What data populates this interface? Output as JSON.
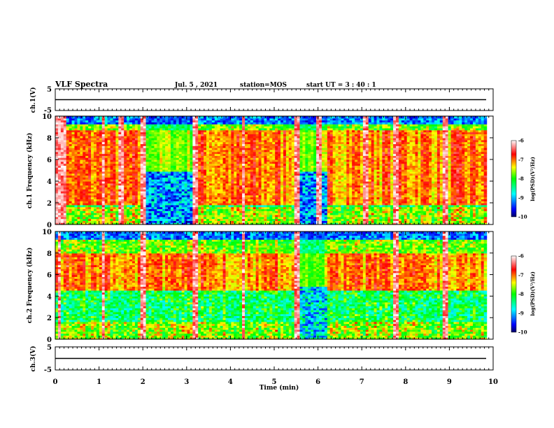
{
  "header": {
    "title": "VLF Spectra",
    "date": "Jul. 5 , 2021",
    "station": "station=MOS",
    "start": "start UT = 3 : 40 : 1"
  },
  "chart_data": [
    {
      "type": "line",
      "panel": "ch1-waveform",
      "ylabel": "ch.1(V)",
      "ylim": [
        -5,
        5
      ],
      "yticks": [
        "5",
        "-5"
      ],
      "series": [
        {
          "x": [
            0,
            9.85
          ],
          "values": [
            0,
            0
          ]
        }
      ]
    },
    {
      "type": "heatmap",
      "panel": "ch1-spectrogram",
      "ylabel": "ch.1 Frequency (kHz)",
      "ylim": [
        0,
        10
      ],
      "yticks": [
        "0",
        "2",
        "4",
        "6",
        "8",
        "10"
      ],
      "xlim": [
        0,
        10
      ],
      "data_end_min": 9.85,
      "colorbar": {
        "label": "log(PSD)(V²/Hz)",
        "range": [
          -10,
          -6
        ],
        "ticks": [
          "-6",
          "-7",
          "-8",
          "-9",
          "-10"
        ]
      },
      "intense_band_khz": [
        1.8,
        8.8
      ],
      "quiet_intervals_min": [
        [
          2.05,
          3.2
        ],
        [
          5.5,
          6.2
        ]
      ],
      "spikes_min": [
        0.07,
        0.2,
        1.1,
        1.5,
        2.0,
        3.2,
        4.3,
        5.5,
        6.0,
        7.1,
        7.8,
        8.9
      ]
    },
    {
      "type": "heatmap",
      "panel": "ch2-spectrogram",
      "ylabel": "ch.2 Frequency (kHz)",
      "ylim": [
        0,
        10
      ],
      "yticks": [
        "0",
        "2",
        "4",
        "6",
        "8",
        "10"
      ],
      "xlim": [
        0,
        10
      ],
      "data_end_min": 9.85,
      "colorbar": {
        "label": "log(PSD)(V²/Hz)",
        "range": [
          -10,
          -6
        ],
        "ticks": [
          "-6",
          "-7",
          "-8",
          "-9",
          "-10"
        ]
      },
      "intense_band_khz": [
        4.5,
        8.0
      ],
      "quiet_intervals_min": [
        [
          5.5,
          6.2
        ]
      ],
      "spikes_min": [
        0.1,
        1.1,
        2.0,
        3.2,
        4.3,
        5.5,
        7.8,
        8.9
      ]
    },
    {
      "type": "line",
      "panel": "ch3-waveform",
      "ylabel": "ch.3(V)",
      "ylim": [
        -5,
        5
      ],
      "yticks": [
        "5",
        "-5"
      ],
      "series": [
        {
          "x": [
            0,
            9.85
          ],
          "values": [
            0,
            0
          ]
        }
      ]
    }
  ],
  "xaxis": {
    "label": "Time (min)",
    "ticks": [
      "0",
      "1",
      "2",
      "3",
      "4",
      "5",
      "6",
      "7",
      "8",
      "9",
      "10"
    ],
    "range": [
      0,
      10
    ]
  },
  "colors": {
    "colormap": [
      "#000066",
      "#0000ff",
      "#00ffff",
      "#00ff00",
      "#ffff00",
      "#ff0000",
      "#ffffff"
    ]
  }
}
